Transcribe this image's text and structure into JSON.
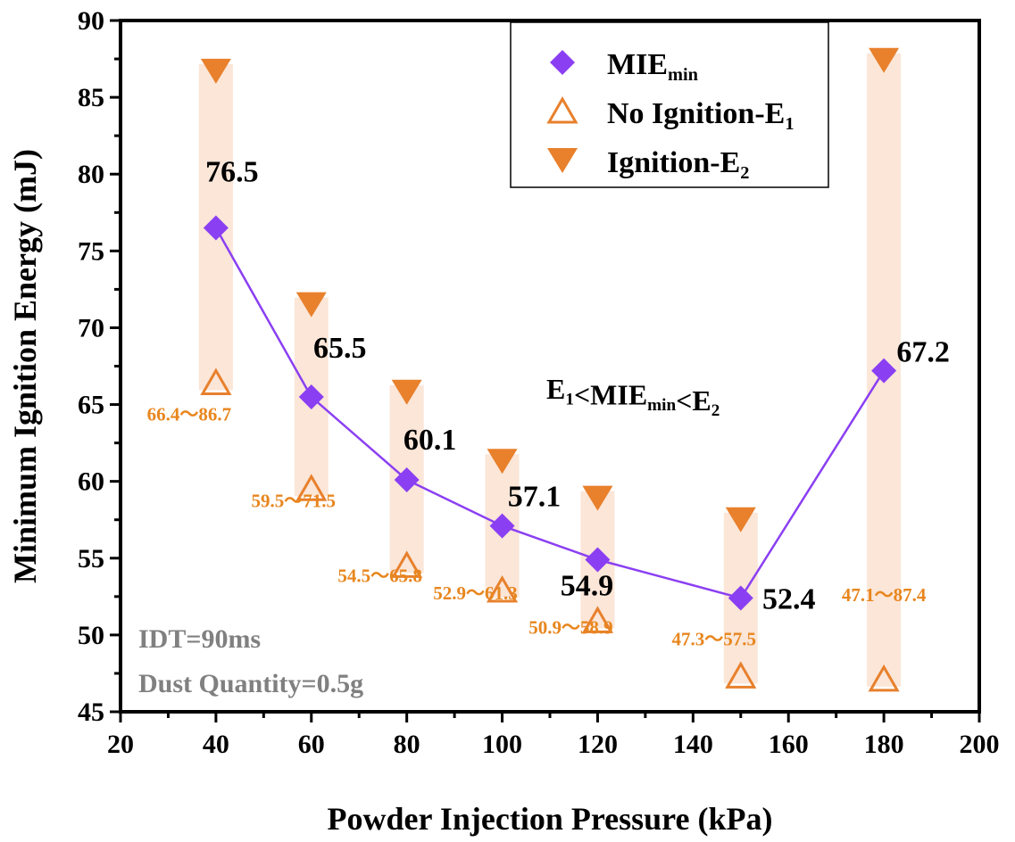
{
  "chart_data": {
    "type": "scatter",
    "xlabel": "Powder Injection Pressure (kPa)",
    "ylabel": "Minimum Ignition Energy (mJ)",
    "xlim": [
      20,
      200
    ],
    "ylim": [
      45,
      90
    ],
    "xticks": [
      20,
      40,
      60,
      80,
      100,
      120,
      140,
      160,
      180,
      200
    ],
    "yticks": [
      45,
      50,
      55,
      60,
      65,
      70,
      75,
      80,
      85,
      90
    ],
    "x": [
      40,
      60,
      80,
      100,
      120,
      150,
      180
    ],
    "series": [
      {
        "name": "MIE",
        "sub": "min",
        "values": [
          76.5,
          65.5,
          60.1,
          57.1,
          54.9,
          52.4,
          67.2
        ],
        "labels": [
          "76.5",
          "65.5",
          "60.1",
          "57.1",
          "54.9",
          "52.4",
          "67.2"
        ],
        "color": "#8b3ff2"
      },
      {
        "name": "No Ignition-E",
        "sub": "1",
        "values": [
          66.4,
          59.5,
          54.5,
          52.9,
          50.9,
          47.3,
          47.1
        ],
        "color": "#e8802c"
      },
      {
        "name": "Ignition-E",
        "sub": "2",
        "values": [
          86.7,
          71.5,
          65.8,
          61.3,
          58.9,
          57.5,
          87.4
        ],
        "color": "#e8802c"
      }
    ],
    "range_labels": [
      "66.4～86.7",
      "59.5～71.5",
      "54.5～65.8",
      "52.9～61.3",
      "50.9～58.9",
      "47.3～57.5",
      "47.1～87.4"
    ],
    "range_color": "#fbe6d8",
    "annotation": {
      "a": "E",
      "a_sub": "1",
      "b": "<MIE",
      "b_sub": "min",
      "c": "<E",
      "c_sub": "2"
    },
    "notes": [
      "IDT=90ms",
      "Dust Quantity=0.5g"
    ],
    "legend_position": "top-right"
  }
}
